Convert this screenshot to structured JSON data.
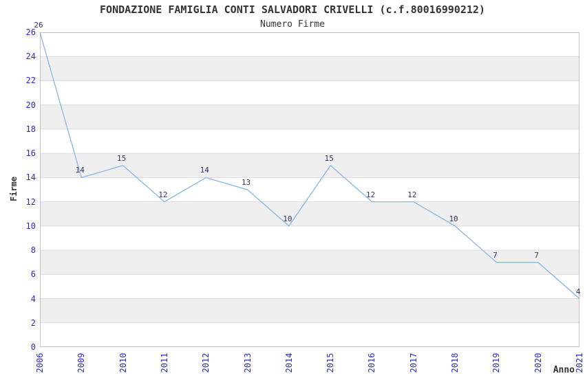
{
  "chart_data": {
    "type": "line",
    "title": "FONDAZIONE FAMIGLIA CONTI SALVADORI CRIVELLI (c.f.80016990212)",
    "subtitle": "Numero Firme",
    "xlabel": "Anno",
    "ylabel": "Firme",
    "categories": [
      "2006",
      "2009",
      "2010",
      "2011",
      "2012",
      "2013",
      "2014",
      "2015",
      "2016",
      "2017",
      "2018",
      "2019",
      "2020",
      "2021"
    ],
    "values": [
      26,
      14,
      15,
      12,
      14,
      13,
      10,
      15,
      12,
      12,
      10,
      7,
      7,
      4
    ],
    "ylim": [
      0,
      26
    ],
    "ytick_step": 2,
    "grid": true,
    "legend": "none",
    "band_fill_ranges": [
      [
        2,
        4
      ],
      [
        6,
        8
      ],
      [
        10,
        12
      ],
      [
        14,
        16
      ],
      [
        18,
        20
      ],
      [
        22,
        24
      ]
    ],
    "colors": {
      "line": "#88b4e6",
      "tick_label": "#2a2acc",
      "data_label": "#333366",
      "band": "#efefef",
      "gridline": "#dcdcdc",
      "plot_border": "#c0c0c0",
      "text": "#333333",
      "background": "#ffffff"
    }
  }
}
